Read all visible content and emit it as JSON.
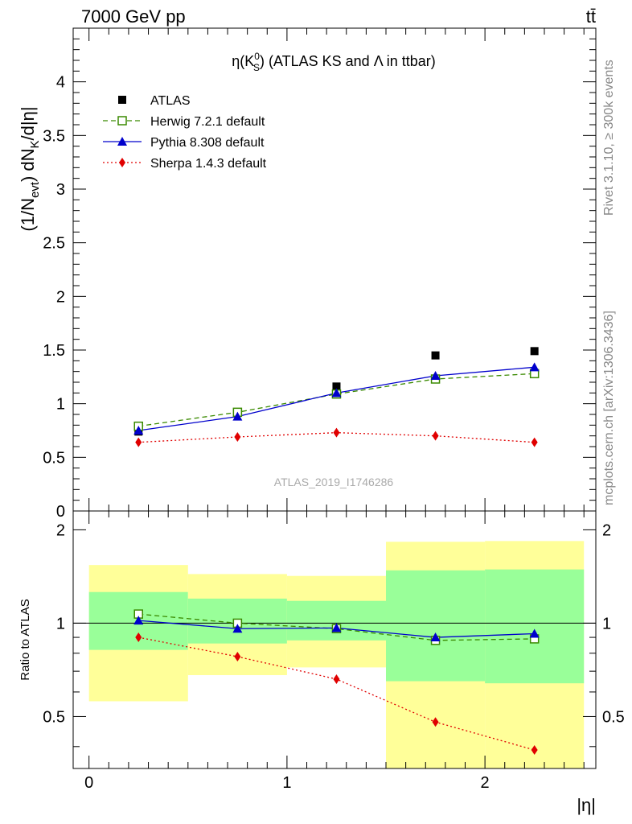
{
  "header": {
    "left": "7000 GeV pp",
    "right": "tt̄"
  },
  "side_labels": {
    "rivet": "Rivet 3.1.10, ≥ 300k events",
    "mcplots": "mcplots.cern.ch [arXiv:1306.3436]"
  },
  "colors": {
    "atlas": "#000000",
    "herwig": "#3a8a00",
    "pythia": "#0000cc",
    "sherpa": "#e00000",
    "band_outer": "#ffff99",
    "band_inner": "#99ff99"
  },
  "chart_data": [
    {
      "type": "line",
      "title": "η(K⁰S) (ATLAS KS and Λ in ttbar)",
      "title_parts": {
        "main": "η(K",
        "sup": "0",
        "sub": "S",
        "rest": ") (ATLAS KS and Λ in ttbar)"
      },
      "ylabel": "(1/Nevt) dNK/d|η|",
      "ylabel_parts": {
        "a": "(1/N",
        "sub1": "evt",
        "b": ") dN",
        "sub2": "K",
        "c": "/d|η|"
      },
      "xlabel": "",
      "watermark": "ATLAS_2019_I1746286",
      "xlim": [
        -0.08,
        2.56
      ],
      "ylim": [
        0,
        4.5
      ],
      "yticks": [
        "0",
        "0.5",
        "1",
        "1.5",
        "2",
        "2.5",
        "3",
        "3.5",
        "4"
      ],
      "x": [
        0.25,
        0.75,
        1.25,
        1.75,
        2.25
      ],
      "bins": [
        [
          0,
          0.5
        ],
        [
          0.5,
          1.0
        ],
        [
          1.0,
          1.5
        ],
        [
          1.5,
          2.0
        ],
        [
          2.0,
          2.5
        ]
      ],
      "series": [
        {
          "name": "ATLAS",
          "key": "atlas",
          "marker": "square",
          "values": [
            0.74,
            0.92,
            1.16,
            1.45,
            1.49
          ]
        },
        {
          "name": "Herwig 7.2.1 default",
          "key": "herwig",
          "marker": "open-square",
          "dash": "dashed",
          "values": [
            0.79,
            0.92,
            1.09,
            1.23,
            1.28
          ]
        },
        {
          "name": "Pythia 8.308 default",
          "key": "pythia",
          "marker": "triangle",
          "dash": "solid",
          "values": [
            0.75,
            0.88,
            1.1,
            1.26,
            1.34
          ]
        },
        {
          "name": "Sherpa 1.4.3 default",
          "key": "sherpa",
          "marker": "diamond",
          "dash": "dotted",
          "values": [
            0.64,
            0.69,
            0.73,
            0.7,
            0.64
          ]
        }
      ]
    },
    {
      "type": "line",
      "title": "",
      "ylabel": "Ratio to ATLAS",
      "xlabel": "|η|",
      "xlim": [
        -0.08,
        2.56
      ],
      "ylim": [
        0.34,
        2.3
      ],
      "yticks": [
        "0.5",
        "1",
        "2"
      ],
      "xticks": [
        "0",
        "1",
        "2"
      ],
      "x": [
        0.25,
        0.75,
        1.25,
        1.75,
        2.25
      ],
      "bands": {
        "outer": [
          [
            0.56,
            1.54
          ],
          [
            0.68,
            1.44
          ],
          [
            0.72,
            1.42
          ],
          [
            0.34,
            1.83
          ],
          [
            0.34,
            1.84
          ]
        ],
        "inner": [
          [
            0.82,
            1.26
          ],
          [
            0.86,
            1.2
          ],
          [
            0.88,
            1.18
          ],
          [
            0.65,
            1.48
          ],
          [
            0.64,
            1.49
          ]
        ]
      },
      "series": [
        {
          "name": "Herwig 7.2.1 default",
          "key": "herwig",
          "marker": "open-square",
          "dash": "dashed",
          "values": [
            1.07,
            1.0,
            0.96,
            0.88,
            0.89
          ]
        },
        {
          "name": "Pythia 8.308 default",
          "key": "pythia",
          "marker": "triangle",
          "dash": "solid",
          "values": [
            1.02,
            0.96,
            0.965,
            0.9,
            0.925
          ]
        },
        {
          "name": "Sherpa 1.4.3 default",
          "key": "sherpa",
          "marker": "diamond",
          "dash": "dotted",
          "values": [
            0.9,
            0.78,
            0.66,
            0.48,
            0.39
          ]
        }
      ]
    }
  ]
}
